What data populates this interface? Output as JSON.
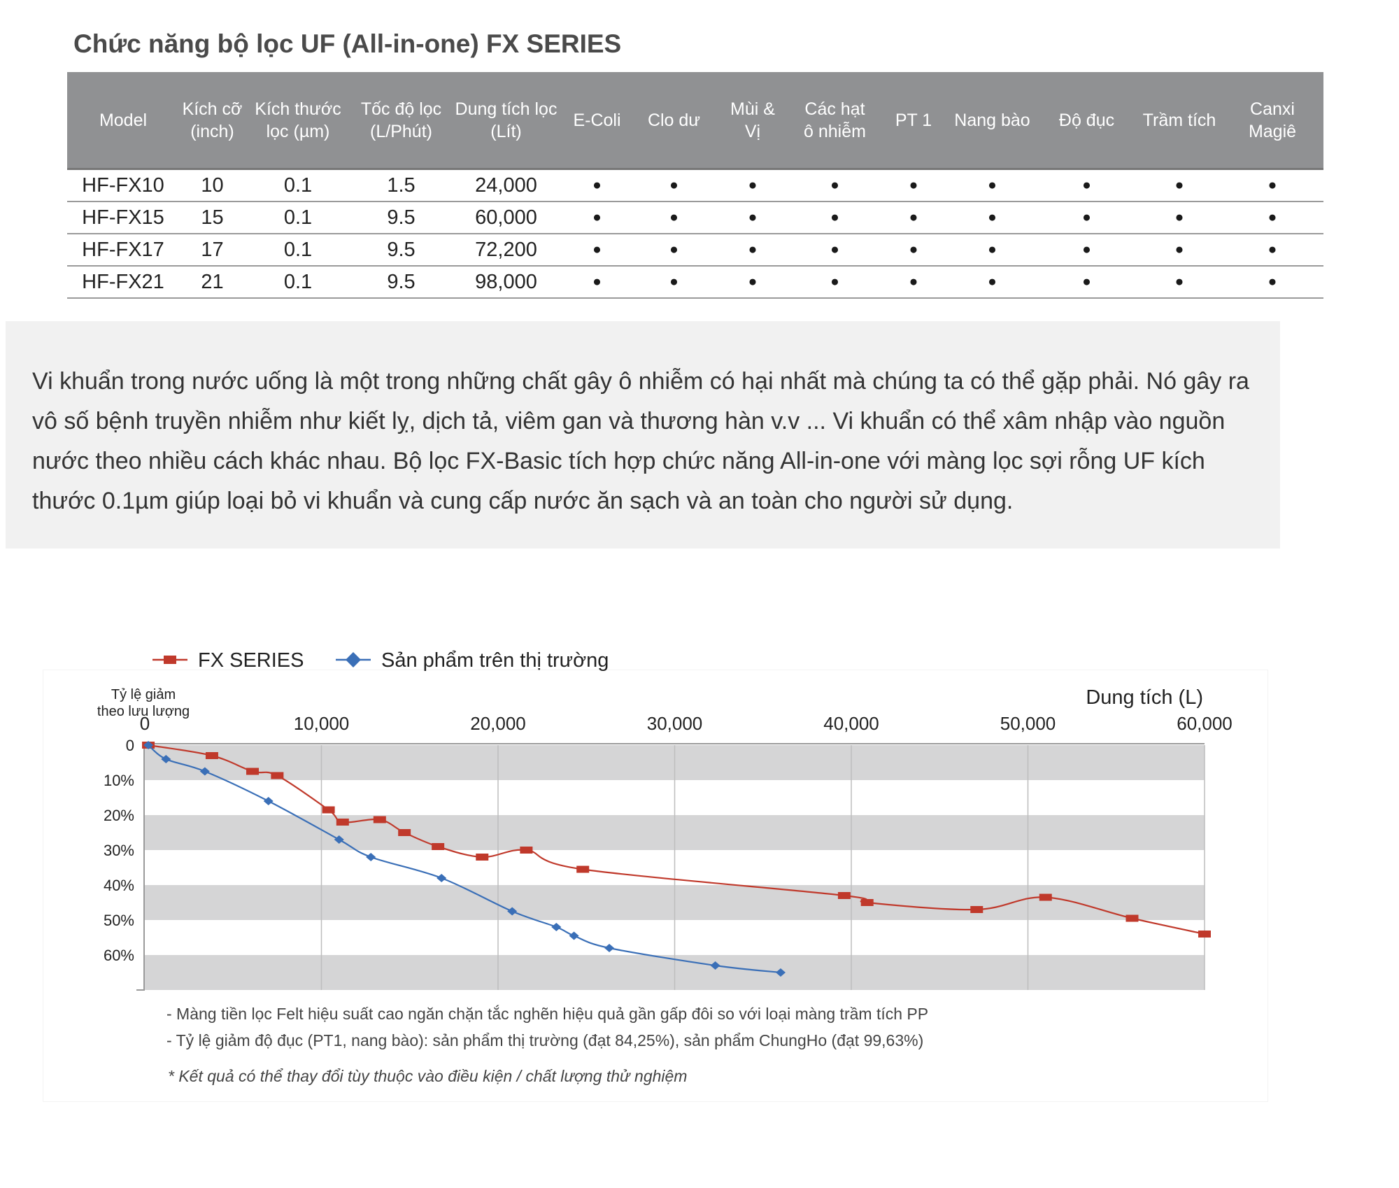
{
  "page": {
    "title": "Chức năng bộ lọc UF (All-in-one) FX SERIES"
  },
  "table": {
    "headers": [
      "Model",
      "Kích cỡ\n(inch)",
      "Kích thước\nlọc (µm)",
      "Tốc độ lọc\n(L/Phút)",
      "Dung tích lọc\n(Lít)",
      "E-Coli",
      "Clo dư",
      "Mùi &\nVị",
      "Các hạt\nô nhiễm",
      "PT 1",
      "Nang bào",
      "Độ đục",
      "Trầm tích",
      "Canxi\nMagiê"
    ],
    "dot_symbol": "●",
    "rows": [
      {
        "model": "HF-FX10",
        "size": "10",
        "filter": "0.1",
        "rate": "1.5",
        "capacity": "24,000",
        "features": [
          true,
          true,
          true,
          true,
          true,
          true,
          true,
          true,
          true
        ]
      },
      {
        "model": "HF-FX15",
        "size": "15",
        "filter": "0.1",
        "rate": "9.5",
        "capacity": "60,000",
        "features": [
          true,
          true,
          true,
          true,
          true,
          true,
          true,
          true,
          true
        ]
      },
      {
        "model": "HF-FX17",
        "size": "17",
        "filter": "0.1",
        "rate": "9.5",
        "capacity": "72,200",
        "features": [
          true,
          true,
          true,
          true,
          true,
          true,
          true,
          true,
          true
        ]
      },
      {
        "model": "HF-FX21",
        "size": "21",
        "filter": "0.1",
        "rate": "9.5",
        "capacity": "98,000",
        "features": [
          true,
          true,
          true,
          true,
          true,
          true,
          true,
          true,
          true
        ]
      }
    ]
  },
  "description": "Vi khuẩn trong nước uống là một trong những chất gây ô nhiễm có hại nhất mà chúng ta có thể gặp phải. Nó gây ra vô số bệnh truyền nhiễm như kiết lỵ, dịch tả, viêm gan và thương hàn v.v ... Vi khuẩn có thể xâm nhập vào nguồn nước theo nhiều cách khác nhau. Bộ lọc FX-Basic tích hợp chức năng All-in-one với màng lọc sợi rỗng UF kích thước 0.1µm giúp loại bỏ vi khuẩn và cung cấp nước ăn sạch và an toàn cho người sử dụng.",
  "chart_data": {
    "type": "line",
    "xlabel": "Dung tích (L)",
    "ylabel": "Tỷ lệ giảm theo lưu lượng",
    "x_axis_position": "top",
    "y_inverted": true,
    "xlim": [
      0,
      60000
    ],
    "ylim": [
      0,
      70
    ],
    "x_ticks": [
      0,
      10000,
      20000,
      30000,
      40000,
      50000,
      60000
    ],
    "x_tick_labels": [
      "0",
      "10,000",
      "20,000",
      "30,000",
      "40,000",
      "50,000",
      "60,000"
    ],
    "y_ticks": [
      0,
      10,
      20,
      30,
      40,
      50,
      60
    ],
    "y_tick_labels": [
      "0",
      "10%",
      "20%",
      "30%",
      "40%",
      "50%",
      "60%"
    ],
    "grid": "alternating horizontal bands",
    "legend_position": "top-left",
    "series": [
      {
        "name": "FX SERIES",
        "color": "#c0392b",
        "marker": "square",
        "points": [
          [
            200,
            0
          ],
          [
            3800,
            3
          ],
          [
            6100,
            7.5
          ],
          [
            7500,
            8.7
          ],
          [
            10400,
            18.5
          ],
          [
            11200,
            22
          ],
          [
            13300,
            21.3
          ],
          [
            14700,
            25
          ],
          [
            16600,
            29
          ],
          [
            19100,
            32
          ],
          [
            21600,
            30
          ],
          [
            24800,
            35.5
          ],
          [
            39600,
            43
          ],
          [
            40900,
            45
          ],
          [
            47100,
            47
          ],
          [
            51000,
            43.5
          ],
          [
            55900,
            49.5
          ],
          [
            60000,
            54
          ]
        ]
      },
      {
        "name": "Sản phẩm trên thị trường",
        "color": "#3a6fb7",
        "marker": "diamond",
        "points": [
          [
            200,
            0
          ],
          [
            1200,
            4
          ],
          [
            3400,
            7.5
          ],
          [
            7000,
            16
          ],
          [
            11000,
            27
          ],
          [
            12800,
            32
          ],
          [
            16800,
            38
          ],
          [
            20800,
            47.5
          ],
          [
            23300,
            52
          ],
          [
            24300,
            54.5
          ],
          [
            26300,
            58
          ],
          [
            32300,
            63
          ],
          [
            36000,
            65
          ]
        ]
      }
    ]
  },
  "footnotes": [
    "- Màng tiền lọc Felt hiệu suất cao ngăn chặn tắc nghẽn hiệu quả gần gấp đôi so với loại màng trầm tích PP",
    "- Tỷ lệ giảm độ đục (PT1, nang bào): sản phẩm thị trường (đạt 84,25%), sản phẩm ChungHo (đạt 99,63%)"
  ],
  "disclaimer": "* Kết quả có thể thay đổi tùy thuộc vào điều kiện / chất lượng thử nghiệm",
  "colors": {
    "header_bg": "#909193",
    "band": "#d5d5d6",
    "box_bg": "#f1f1f1"
  }
}
